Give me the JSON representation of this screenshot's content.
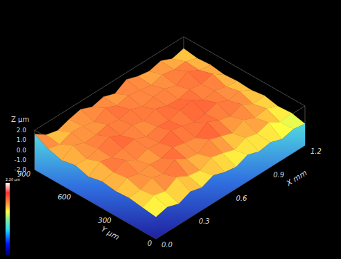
{
  "chart_data": {
    "type": "surface3d",
    "x_label": "X mm",
    "y_label": "Y µm",
    "z_label": "Z µm",
    "xlim": [
      0,
      1.2
    ],
    "xticks": [
      {
        "value": 0,
        "label": "0.0"
      },
      {
        "value": 0.3,
        "label": "0.3"
      },
      {
        "value": 0.6,
        "label": "0.6"
      },
      {
        "value": 0.9,
        "label": "0.9"
      },
      {
        "value": 1.2,
        "label": "1.2"
      }
    ],
    "ylim": [
      0,
      900
    ],
    "yticks": [
      0,
      300,
      600,
      900
    ],
    "zlim": [
      -2,
      2
    ],
    "zticks": [
      {
        "value": 2,
        "label": "2.0"
      },
      {
        "value": 1,
        "label": "1.0"
      },
      {
        "value": 0,
        "label": "0.0"
      },
      {
        "value": -1,
        "label": "-1.0"
      },
      {
        "value": -2,
        "label": "-2.0"
      }
    ],
    "colorbar": {
      "range": [
        -2.2,
        2.2
      ],
      "max_label": "2.20 µm"
    },
    "z": [
      [
        0.2,
        0.5,
        0.1,
        0.6,
        0.3,
        0.8,
        0.4,
        0.2,
        0.7,
        0.3,
        0.5,
        0.1,
        0.4,
        0.2
      ],
      [
        0.4,
        0.9,
        0.6,
        1.3,
        0.7,
        0.5,
        1.1,
        0.8,
        0.4,
        0.9,
        0.6,
        1.0,
        0.3,
        0.5
      ],
      [
        0.6,
        0.7,
        1.2,
        0.8,
        1.6,
        0.9,
        0.7,
        1.4,
        1.0,
        0.6,
        1.2,
        0.7,
        0.9,
        0.4
      ],
      [
        0.5,
        1.1,
        0.8,
        1.0,
        0.9,
        1.3,
        1.0,
        0.8,
        1.7,
        1.1,
        0.8,
        1.3,
        0.6,
        0.7
      ],
      [
        0.7,
        0.9,
        1.4,
        0.7,
        1.1,
        1.0,
        1.5,
        1.2,
        0.9,
        1.0,
        1.4,
        0.9,
        1.1,
        0.5
      ],
      [
        0.4,
        1.2,
        0.9,
        1.1,
        1.3,
        0.8,
        1.1,
        1.0,
        1.3,
        1.6,
        0.9,
        1.1,
        0.8,
        0.6
      ],
      [
        0.8,
        0.7,
        1.0,
        1.5,
        0.9,
        1.2,
        0.9,
        1.4,
        1.0,
        0.9,
        1.2,
        1.0,
        1.3,
        0.5
      ],
      [
        0.5,
        1.3,
        0.8,
        0.9,
        1.2,
        1.0,
        1.3,
        0.8,
        1.1,
        1.2,
        0.8,
        1.5,
        0.9,
        0.7
      ],
      [
        0.9,
        0.6,
        1.1,
        1.0,
        0.7,
        1.4,
        0.9,
        1.2,
        1.0,
        0.8,
        1.1,
        0.9,
        1.0,
        0.6
      ],
      [
        1.6,
        0.8,
        0.5,
        0.9,
        1.2,
        0.7,
        1.0,
        0.6,
        1.3,
        0.9,
        0.7,
        1.0,
        0.5,
        0.8
      ]
    ]
  }
}
